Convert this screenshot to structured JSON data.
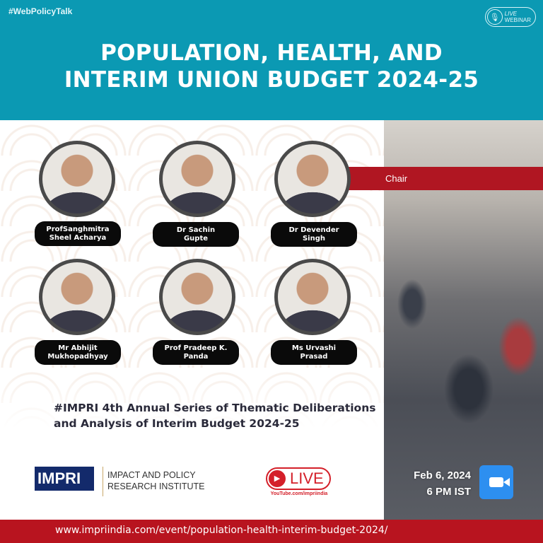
{
  "header": {
    "hashtag": "#WebPolicyTalk",
    "badge_live": "LIVE",
    "badge_webinar": "WEBINAR",
    "title_line1": "POPULATION, HEALTH, AND",
    "title_line2": "INTERIM UNION BUDGET 2024-25",
    "color": "#0b99b3"
  },
  "chair_label": "Chair",
  "speakers": [
    {
      "name": "ProfSanghmitra\nSheel Acharya"
    },
    {
      "name": "Dr Sachin\nGupte"
    },
    {
      "name": "Dr Devender\nSingh"
    },
    {
      "name": "Mr Abhijit\nMukhopadhyay"
    },
    {
      "name": "Prof Pradeep K.\nPanda"
    },
    {
      "name": "Ms Urvashi\nPrasad"
    }
  ],
  "series_text": "#IMPRI 4th Annual Series of Thematic Deliberations and Analysis of Interim Budget 2024-25",
  "org": {
    "logo": "IMPRI",
    "name_line1": "IMPACT AND POLICY",
    "name_line2": "RESEARCH INSTITUTE"
  },
  "live": {
    "label": "LIVE",
    "channel": "YouTube.com/impriindia"
  },
  "event": {
    "date": "Feb 6, 2024",
    "time": "6 PM IST"
  },
  "footer": {
    "url": "www.impriindia.com/event/population-health-interim-budget-2024/",
    "color": "#b8141f"
  }
}
